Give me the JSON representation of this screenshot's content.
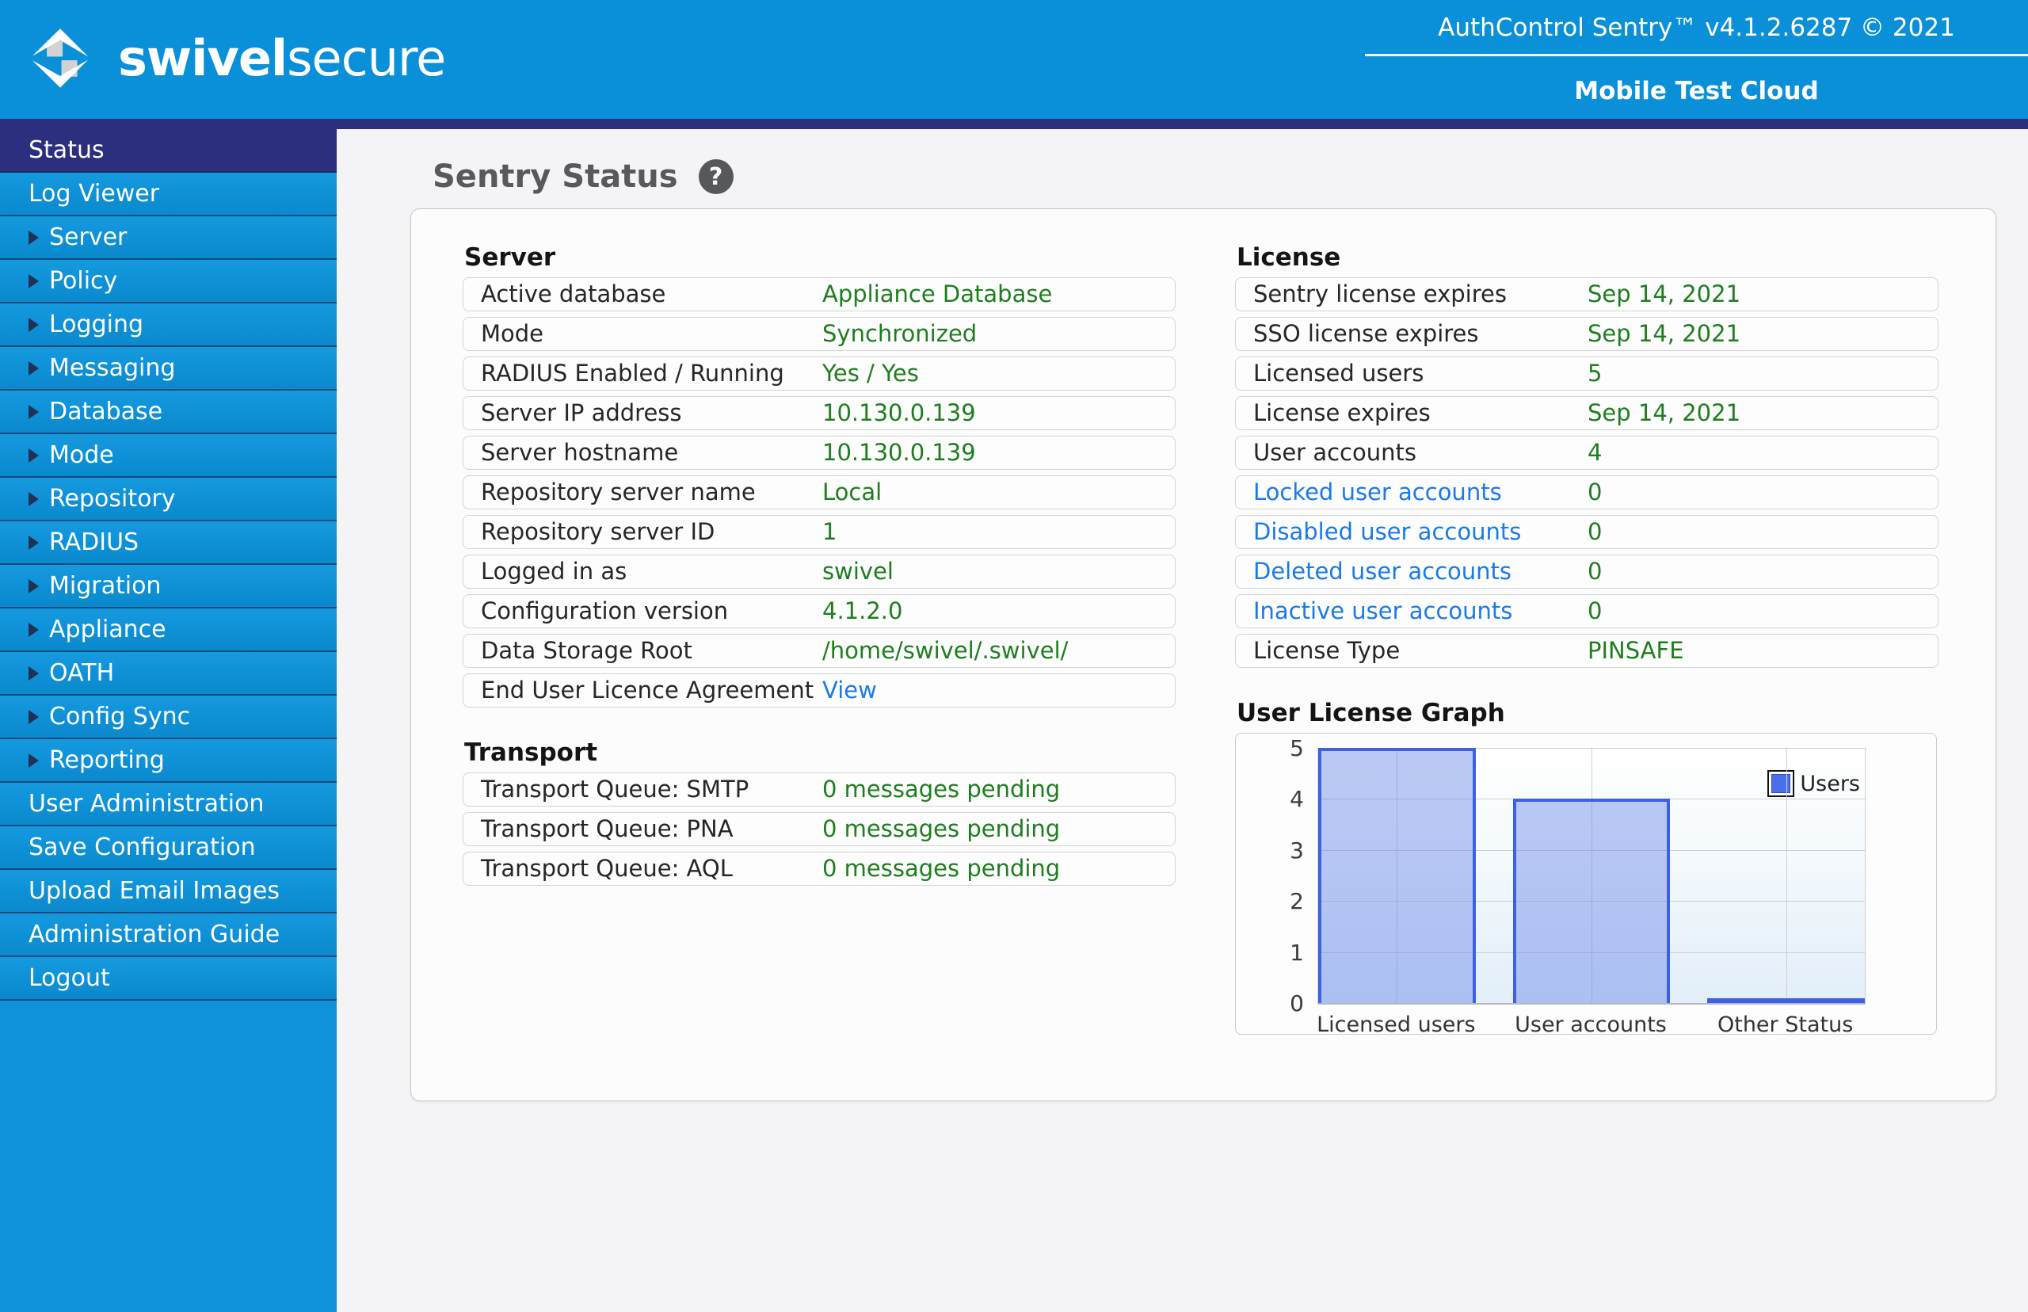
{
  "header": {
    "brand": {
      "word_bold": "swivel",
      "word_light": "secure"
    },
    "version_text": "AuthControl Sentry™ v4.1.2.6287 © 2021",
    "environment": "Mobile Test Cloud"
  },
  "colors": {
    "header_blue": "#0a90d8",
    "sidebar_blue": "#0f92d9",
    "navy": "#2b2f7e",
    "value_green": "#1e7e1e",
    "link_blue": "#1a7ae6",
    "bar_fill": "#aebef5",
    "bar_border": "#3c61e2",
    "title_gray": "#58595b"
  },
  "sidebar": {
    "items": [
      {
        "label": "Status",
        "has_submenu": false,
        "selected": true
      },
      {
        "label": "Log Viewer",
        "has_submenu": false,
        "selected": false
      },
      {
        "label": "Server",
        "has_submenu": true,
        "selected": false
      },
      {
        "label": "Policy",
        "has_submenu": true,
        "selected": false
      },
      {
        "label": "Logging",
        "has_submenu": true,
        "selected": false
      },
      {
        "label": "Messaging",
        "has_submenu": true,
        "selected": false
      },
      {
        "label": "Database",
        "has_submenu": true,
        "selected": false
      },
      {
        "label": "Mode",
        "has_submenu": true,
        "selected": false
      },
      {
        "label": "Repository",
        "has_submenu": true,
        "selected": false
      },
      {
        "label": "RADIUS",
        "has_submenu": true,
        "selected": false
      },
      {
        "label": "Migration",
        "has_submenu": true,
        "selected": false
      },
      {
        "label": "Appliance",
        "has_submenu": true,
        "selected": false
      },
      {
        "label": "OATH",
        "has_submenu": true,
        "selected": false
      },
      {
        "label": "Config Sync",
        "has_submenu": true,
        "selected": false
      },
      {
        "label": "Reporting",
        "has_submenu": true,
        "selected": false
      },
      {
        "label": "User Administration",
        "has_submenu": false,
        "selected": false
      },
      {
        "label": "Save Configuration",
        "has_submenu": false,
        "selected": false
      },
      {
        "label": "Upload Email Images",
        "has_submenu": false,
        "selected": false
      },
      {
        "label": "Administration Guide",
        "has_submenu": false,
        "selected": false
      },
      {
        "label": "Logout",
        "has_submenu": false,
        "selected": false
      }
    ]
  },
  "main": {
    "title": "Sentry Status",
    "help_icon": "?",
    "server": {
      "title": "Server",
      "rows": [
        {
          "label": "Active database",
          "value": "Appliance Database",
          "label_link": false,
          "value_link": false
        },
        {
          "label": "Mode",
          "value": "Synchronized",
          "label_link": false,
          "value_link": false
        },
        {
          "label": "RADIUS Enabled / Running",
          "value": "Yes / Yes",
          "label_link": false,
          "value_link": false
        },
        {
          "label": "Server IP address",
          "value": "10.130.0.139",
          "label_link": false,
          "value_link": false
        },
        {
          "label": "Server hostname",
          "value": "10.130.0.139",
          "label_link": false,
          "value_link": false
        },
        {
          "label": "Repository server name",
          "value": "Local",
          "label_link": false,
          "value_link": false
        },
        {
          "label": "Repository server ID",
          "value": "1",
          "label_link": false,
          "value_link": false
        },
        {
          "label": "Logged in as",
          "value": "swivel",
          "label_link": false,
          "value_link": false
        },
        {
          "label": "Configuration version",
          "value": "4.1.2.0",
          "label_link": false,
          "value_link": false
        },
        {
          "label": "Data Storage Root",
          "value": "/home/swivel/.swivel/",
          "label_link": false,
          "value_link": false
        },
        {
          "label": "End User Licence Agreement",
          "value": "View",
          "label_link": false,
          "value_link": true
        }
      ]
    },
    "transport": {
      "title": "Transport",
      "rows": [
        {
          "label": "Transport Queue: SMTP",
          "value": "0 messages pending",
          "label_link": false,
          "value_link": false
        },
        {
          "label": "Transport Queue: PNA",
          "value": "0 messages pending",
          "label_link": false,
          "value_link": false
        },
        {
          "label": "Transport Queue: AQL",
          "value": "0 messages pending",
          "label_link": false,
          "value_link": false
        }
      ]
    },
    "license": {
      "title": "License",
      "rows": [
        {
          "label": "Sentry license expires",
          "value": "Sep 14, 2021",
          "label_link": false,
          "value_link": false
        },
        {
          "label": "SSO license expires",
          "value": "Sep 14, 2021",
          "label_link": false,
          "value_link": false
        },
        {
          "label": "Licensed users",
          "value": "5",
          "label_link": false,
          "value_link": false
        },
        {
          "label": "License expires",
          "value": "Sep 14, 2021",
          "label_link": false,
          "value_link": false
        },
        {
          "label": "User accounts",
          "value": "4",
          "label_link": false,
          "value_link": false
        },
        {
          "label": "Locked user accounts",
          "value": "0",
          "label_link": true,
          "value_link": false
        },
        {
          "label": "Disabled user accounts",
          "value": "0",
          "label_link": true,
          "value_link": false
        },
        {
          "label": "Deleted user accounts",
          "value": "0",
          "label_link": true,
          "value_link": false
        },
        {
          "label": "Inactive user accounts",
          "value": "0",
          "label_link": true,
          "value_link": false
        },
        {
          "label": "License Type",
          "value": "PINSAFE",
          "label_link": false,
          "value_link": false
        }
      ]
    },
    "graph_title": "User License Graph"
  },
  "chart_data": {
    "type": "bar",
    "title": "User License Graph",
    "categories": [
      "Licensed users",
      "User accounts",
      "Other Status"
    ],
    "series": [
      {
        "name": "Users",
        "values": [
          5,
          4,
          0
        ]
      }
    ],
    "ylim": [
      0,
      5
    ],
    "yticks": [
      0,
      1,
      2,
      3,
      4,
      5
    ],
    "xlabel": "",
    "ylabel": "",
    "grid": true,
    "legend_position": "top-right"
  }
}
